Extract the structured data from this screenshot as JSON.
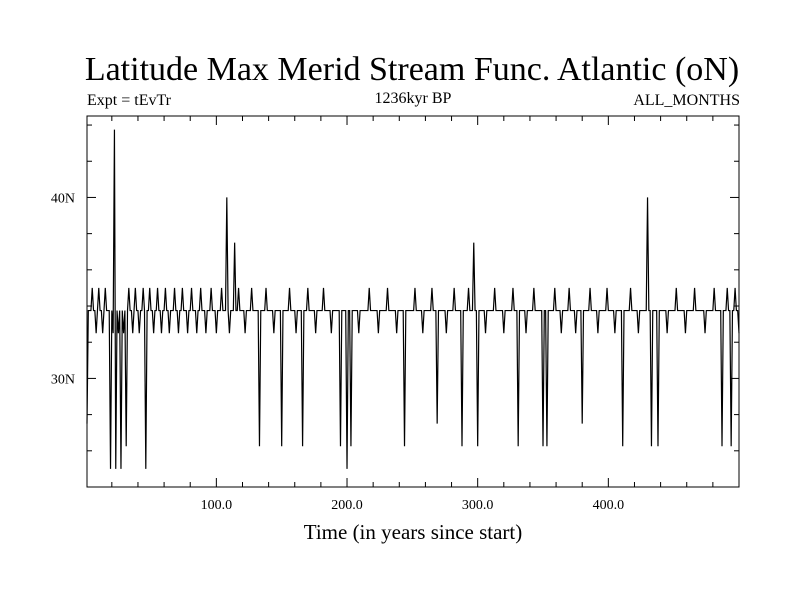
{
  "chart_data": {
    "type": "line",
    "title": "Latitude Max Merid Stream Func. Atlantic (oN)",
    "left_note": "Expt = tEvTr",
    "center_note": "1236kyr BP",
    "right_note": "ALL_MONTHS",
    "xlabel": "Time (in years since start)",
    "ylabel": "",
    "xlim": [
      1,
      500
    ],
    "ylim": [
      24,
      44.5
    ],
    "x_ticks": [
      {
        "value": 100,
        "label": "100.0"
      },
      {
        "value": 200,
        "label": "200.0"
      },
      {
        "value": 300,
        "label": "300.0"
      },
      {
        "value": 400,
        "label": "400.0"
      }
    ],
    "y_ticks": [
      {
        "value": 30,
        "label": "30N"
      },
      {
        "value": 40,
        "label": "40N"
      }
    ],
    "grid": false,
    "line_color": "#000000",
    "baseline_value": 33.75,
    "upper_value": 35.0,
    "lower_value": 32.5,
    "series": [
      {
        "spikes": [
          {
            "x": 1,
            "y": 27.5
          },
          {
            "x": 5,
            "y": 35.0
          },
          {
            "x": 8,
            "y": 32.5
          },
          {
            "x": 10,
            "y": 35.0
          },
          {
            "x": 13,
            "y": 32.5
          },
          {
            "x": 15,
            "y": 35.0
          },
          {
            "x": 19,
            "y": 25.0
          },
          {
            "x": 21,
            "y": 32.5
          },
          {
            "x": 22,
            "y": 43.75
          },
          {
            "x": 23,
            "y": 25.0
          },
          {
            "x": 25,
            "y": 32.5
          },
          {
            "x": 27,
            "y": 25.0
          },
          {
            "x": 29,
            "y": 32.5
          },
          {
            "x": 31,
            "y": 26.25
          },
          {
            "x": 33,
            "y": 35.0
          },
          {
            "x": 36,
            "y": 32.5
          },
          {
            "x": 38,
            "y": 35.0
          },
          {
            "x": 41,
            "y": 32.5
          },
          {
            "x": 44,
            "y": 35.0
          },
          {
            "x": 46,
            "y": 25.0
          },
          {
            "x": 49,
            "y": 35.0
          },
          {
            "x": 52,
            "y": 32.5
          },
          {
            "x": 55,
            "y": 35.0
          },
          {
            "x": 58,
            "y": 32.5
          },
          {
            "x": 61,
            "y": 35.0
          },
          {
            "x": 64,
            "y": 32.5
          },
          {
            "x": 68,
            "y": 35.0
          },
          {
            "x": 71,
            "y": 32.5
          },
          {
            "x": 74,
            "y": 35.0
          },
          {
            "x": 78,
            "y": 32.5
          },
          {
            "x": 81,
            "y": 35.0
          },
          {
            "x": 85,
            "y": 32.5
          },
          {
            "x": 88,
            "y": 35.0
          },
          {
            "x": 92,
            "y": 32.5
          },
          {
            "x": 96,
            "y": 35.0
          },
          {
            "x": 100,
            "y": 32.5
          },
          {
            "x": 104,
            "y": 35.0
          },
          {
            "x": 108,
            "y": 40.0
          },
          {
            "x": 110,
            "y": 32.5
          },
          {
            "x": 114,
            "y": 37.5
          },
          {
            "x": 117,
            "y": 35.0
          },
          {
            "x": 122,
            "y": 32.5
          },
          {
            "x": 127,
            "y": 35.0
          },
          {
            "x": 133,
            "y": 26.25
          },
          {
            "x": 138,
            "y": 35.0
          },
          {
            "x": 144,
            "y": 32.5
          },
          {
            "x": 150,
            "y": 26.25
          },
          {
            "x": 156,
            "y": 35.0
          },
          {
            "x": 161,
            "y": 32.5
          },
          {
            "x": 166,
            "y": 26.25
          },
          {
            "x": 170,
            "y": 35.0
          },
          {
            "x": 176,
            "y": 32.5
          },
          {
            "x": 182,
            "y": 35.0
          },
          {
            "x": 188,
            "y": 32.5
          },
          {
            "x": 195,
            "y": 26.25
          },
          {
            "x": 200,
            "y": 25.0
          },
          {
            "x": 203,
            "y": 26.25
          },
          {
            "x": 209,
            "y": 32.5
          },
          {
            "x": 217,
            "y": 35.0
          },
          {
            "x": 224,
            "y": 32.5
          },
          {
            "x": 231,
            "y": 35.0
          },
          {
            "x": 238,
            "y": 32.5
          },
          {
            "x": 244,
            "y": 26.25
          },
          {
            "x": 252,
            "y": 35.0
          },
          {
            "x": 258,
            "y": 32.5
          },
          {
            "x": 265,
            "y": 35.0
          },
          {
            "x": 269,
            "y": 27.5
          },
          {
            "x": 276,
            "y": 32.5
          },
          {
            "x": 282,
            "y": 35.0
          },
          {
            "x": 288,
            "y": 26.25
          },
          {
            "x": 293,
            "y": 35.0
          },
          {
            "x": 297,
            "y": 37.5
          },
          {
            "x": 300,
            "y": 26.25
          },
          {
            "x": 306,
            "y": 32.5
          },
          {
            "x": 313,
            "y": 35.0
          },
          {
            "x": 320,
            "y": 32.5
          },
          {
            "x": 327,
            "y": 35.0
          },
          {
            "x": 331,
            "y": 26.25
          },
          {
            "x": 337,
            "y": 32.5
          },
          {
            "x": 343,
            "y": 35.0
          },
          {
            "x": 350,
            "y": 26.25
          },
          {
            "x": 353,
            "y": 26.25
          },
          {
            "x": 359,
            "y": 35.0
          },
          {
            "x": 364,
            "y": 32.5
          },
          {
            "x": 370,
            "y": 35.0
          },
          {
            "x": 375,
            "y": 32.5
          },
          {
            "x": 380,
            "y": 27.5
          },
          {
            "x": 386,
            "y": 35.0
          },
          {
            "x": 392,
            "y": 32.5
          },
          {
            "x": 399,
            "y": 35.0
          },
          {
            "x": 405,
            "y": 32.5
          },
          {
            "x": 411,
            "y": 26.25
          },
          {
            "x": 417,
            "y": 35.0
          },
          {
            "x": 423,
            "y": 32.5
          },
          {
            "x": 430,
            "y": 40.0
          },
          {
            "x": 433,
            "y": 26.25
          },
          {
            "x": 438,
            "y": 26.25
          },
          {
            "x": 445,
            "y": 32.5
          },
          {
            "x": 452,
            "y": 35.0
          },
          {
            "x": 459,
            "y": 32.5
          },
          {
            "x": 466,
            "y": 35.0
          },
          {
            "x": 474,
            "y": 32.5
          },
          {
            "x": 481,
            "y": 35.0
          },
          {
            "x": 487,
            "y": 26.25
          },
          {
            "x": 491,
            "y": 35.0
          },
          {
            "x": 494,
            "y": 26.25
          },
          {
            "x": 497,
            "y": 35.0
          },
          {
            "x": 500,
            "y": 32.5
          }
        ]
      }
    ]
  }
}
